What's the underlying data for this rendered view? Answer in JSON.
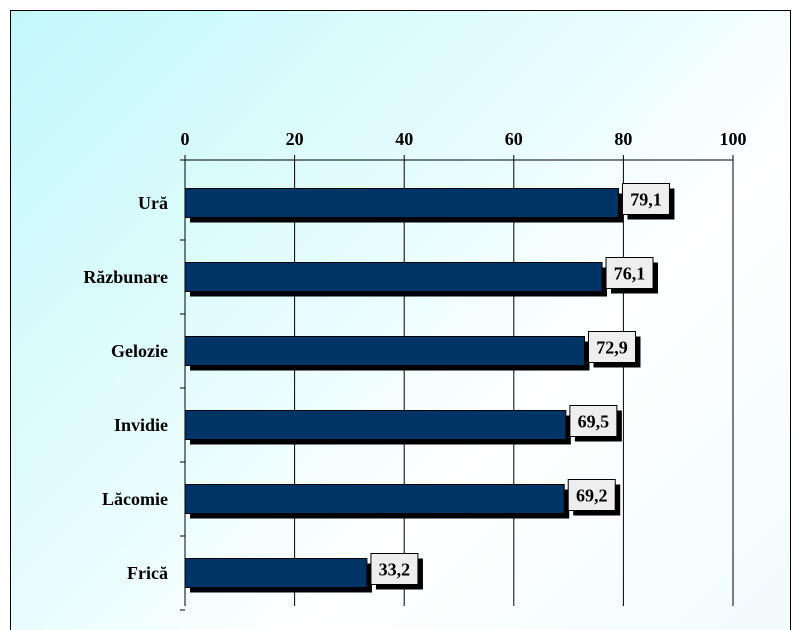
{
  "chart_data": {
    "type": "bar",
    "orientation": "horizontal",
    "title": "",
    "xlabel": "",
    "ylabel": "",
    "categories": [
      "Ură",
      "Răzbunare",
      "Gelozie",
      "Invidie",
      "Lăcomie",
      "Frică"
    ],
    "values": [
      79.1,
      76.1,
      72.9,
      69.5,
      69.2,
      33.2
    ],
    "value_labels": [
      "79,1",
      "76,1",
      "72,9",
      "69,5",
      "69,2",
      "33,2"
    ],
    "xlim": [
      0,
      100
    ],
    "x_ticks": [
      0,
      20,
      40,
      60,
      80,
      100
    ],
    "x_tick_labels": [
      "0",
      "20",
      "40",
      "60",
      "80",
      "100"
    ],
    "x_axis_position": "top",
    "grid": true,
    "legend": false,
    "colors": {
      "bar": "#003366",
      "bar_shadow": "#000000",
      "label_box": "#eeeeee",
      "background_accent": "#c2f8fb"
    }
  }
}
